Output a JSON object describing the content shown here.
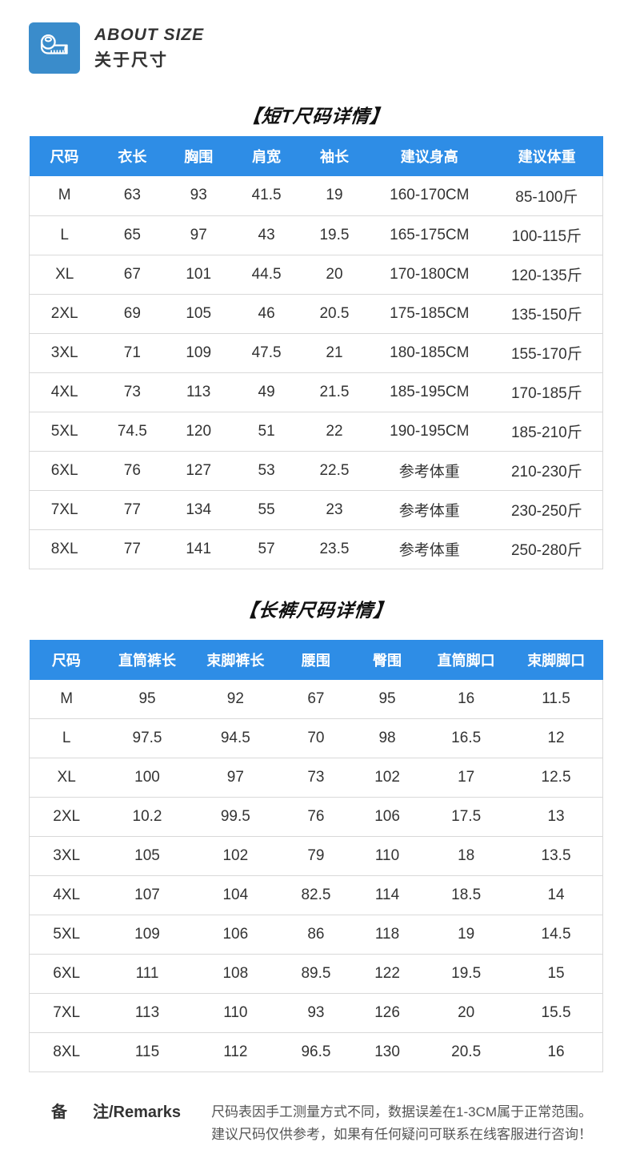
{
  "brand": {
    "title_en": "ABOUT SIZE",
    "title_zh": "关于尺寸",
    "icon": "measuring-tape-icon"
  },
  "colors": {
    "header_blue": "#2E8DE6",
    "icon_blue": "#3A8CCB",
    "border_gray": "#D9D9D9",
    "text_dark": "#2B2B2B",
    "text_mid": "#333333",
    "text_gray": "#555555"
  },
  "tables": [
    {
      "title": "【短T尺码详情】",
      "columns": [
        "尺码",
        "衣长",
        "胸围",
        "肩宽",
        "袖长",
        "建议身高",
        "建议体重"
      ],
      "col_widths": [
        "12.26%",
        "11.42%",
        "11.70%",
        "11.98%",
        "11.70%",
        "21.45%",
        "19.49%"
      ],
      "rows": [
        [
          "M",
          "63",
          "93",
          "41.5",
          "19",
          "160-170CM",
          "85-100斤"
        ],
        [
          "L",
          "65",
          "97",
          "43",
          "19.5",
          "165-175CM",
          "100-115斤"
        ],
        [
          "XL",
          "67",
          "101",
          "44.5",
          "20",
          "170-180CM",
          "120-135斤"
        ],
        [
          "2XL",
          "69",
          "105",
          "46",
          "20.5",
          "175-185CM",
          "135-150斤"
        ],
        [
          "3XL",
          "71",
          "109",
          "47.5",
          "21",
          "180-185CM",
          "155-170斤"
        ],
        [
          "4XL",
          "73",
          "113",
          "49",
          "21.5",
          "185-195CM",
          "170-185斤"
        ],
        [
          "5XL",
          "74.5",
          "120",
          "51",
          "22",
          "190-195CM",
          "185-210斤"
        ],
        [
          "6XL",
          "76",
          "127",
          "53",
          "22.5",
          "参考体重",
          "210-230斤"
        ],
        [
          "7XL",
          "77",
          "134",
          "55",
          "23",
          "参考体重",
          "230-250斤"
        ],
        [
          "8XL",
          "77",
          "141",
          "57",
          "23.5",
          "参考体重",
          "250-280斤"
        ]
      ]
    },
    {
      "title": "【长裤尺码详情】",
      "columns": [
        "尺码",
        "直筒裤长",
        "束脚裤长",
        "腰围",
        "臀围",
        "直筒脚口",
        "束脚脚口"
      ],
      "col_widths": [
        "12.95%",
        "15.25%",
        "15.53%",
        "12.53%",
        "12.33%",
        "15.18%",
        "16.23%"
      ],
      "rows": [
        [
          "M",
          "95",
          "92",
          "67",
          "95",
          "16",
          "11.5"
        ],
        [
          "L",
          "97.5",
          "94.5",
          "70",
          "98",
          "16.5",
          "12"
        ],
        [
          "XL",
          "100",
          "97",
          "73",
          "102",
          "17",
          "12.5"
        ],
        [
          "2XL",
          "10.2",
          "99.5",
          "76",
          "106",
          "17.5",
          "13"
        ],
        [
          "3XL",
          "105",
          "102",
          "79",
          "110",
          "18",
          "13.5"
        ],
        [
          "4XL",
          "107",
          "104",
          "82.5",
          "114",
          "18.5",
          "14"
        ],
        [
          "5XL",
          "109",
          "106",
          "86",
          "118",
          "19",
          "14.5"
        ],
        [
          "6XL",
          "111",
          "108",
          "89.5",
          "122",
          "19.5",
          "15"
        ],
        [
          "7XL",
          "113",
          "110",
          "93",
          "126",
          "20",
          "15.5"
        ],
        [
          "8XL",
          "115",
          "112",
          "96.5",
          "130",
          "20.5",
          "16"
        ]
      ]
    }
  ],
  "remarks": {
    "label_left": "备",
    "label_right": "注/Remarks",
    "lines": [
      "尺码表因手工测量方式不同，数据误差在1-3CM属于正常范围。",
      "建议尺码仅供参考，如果有任何疑问可联系在线客服进行咨询！"
    ]
  }
}
